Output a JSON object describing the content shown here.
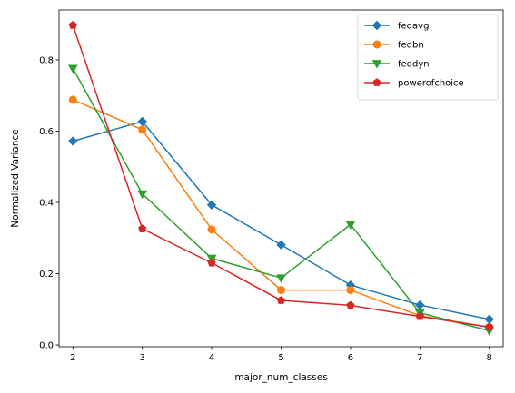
{
  "chart_data": {
    "type": "line",
    "xlabel": "major_num_classes",
    "ylabel": "Normalized Variance",
    "x": [
      2,
      3,
      4,
      5,
      6,
      7,
      8
    ],
    "xlim": [
      1.8,
      8.2
    ],
    "ylim": [
      -0.005,
      0.94
    ],
    "xticks": [
      2,
      3,
      4,
      5,
      6,
      7,
      8
    ],
    "xtick_labels": [
      "2",
      "3",
      "4",
      "5",
      "6",
      "7",
      "8"
    ],
    "yticks": [
      0.0,
      0.2,
      0.4,
      0.6,
      0.8
    ],
    "ytick_labels": [
      "0.0",
      "0.2",
      "0.4",
      "0.6",
      "0.8"
    ],
    "grid": false,
    "legend_position": "top-right",
    "series": [
      {
        "name": "fedavg",
        "color": "#1f77b4",
        "marker": "diamond",
        "values": [
          0.572,
          0.627,
          0.393,
          0.281,
          0.168,
          0.112,
          0.072
        ]
      },
      {
        "name": "fedbn",
        "color": "#ff7f0e",
        "marker": "circle",
        "values": [
          0.688,
          0.604,
          0.324,
          0.154,
          0.154,
          0.082,
          0.05
        ]
      },
      {
        "name": "feddyn",
        "color": "#2ca02c",
        "marker": "triangle-down",
        "values": [
          0.776,
          0.424,
          0.243,
          0.188,
          0.338,
          0.09,
          0.04
        ]
      },
      {
        "name": "powerofchoice",
        "color": "#d62728",
        "marker": "pentagon",
        "values": [
          0.897,
          0.326,
          0.23,
          0.125,
          0.111,
          0.08,
          0.05
        ]
      }
    ]
  }
}
